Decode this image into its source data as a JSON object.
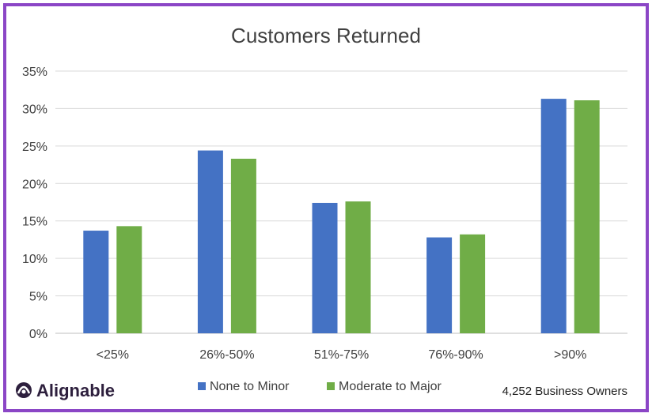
{
  "chart_data": {
    "type": "bar",
    "title": "Customers Returned",
    "categories": [
      "<25%",
      "26%-50%",
      "51%-75%",
      "76%-90%",
      ">90%"
    ],
    "series": [
      {
        "name": "None to Minor",
        "color": "#4472c4",
        "values": [
          13.7,
          24.4,
          17.4,
          12.8,
          31.3
        ]
      },
      {
        "name": "Moderate to Major",
        "color": "#70ad47",
        "values": [
          14.3,
          23.3,
          17.6,
          13.2,
          31.1
        ]
      }
    ],
    "ylim": [
      0,
      35
    ],
    "yticks": [
      "0%",
      "5%",
      "10%",
      "15%",
      "20%",
      "25%",
      "30%",
      "35%"
    ],
    "ytick_values": [
      0,
      5,
      10,
      15,
      20,
      25,
      30,
      35
    ],
    "grid": true,
    "legend_position": "bottom"
  },
  "brand": {
    "logo_text": "Alignable",
    "logo_icon": "alignable-logo-icon",
    "border_color": "#8b46c6"
  },
  "footnote": "4,252 Business Owners"
}
